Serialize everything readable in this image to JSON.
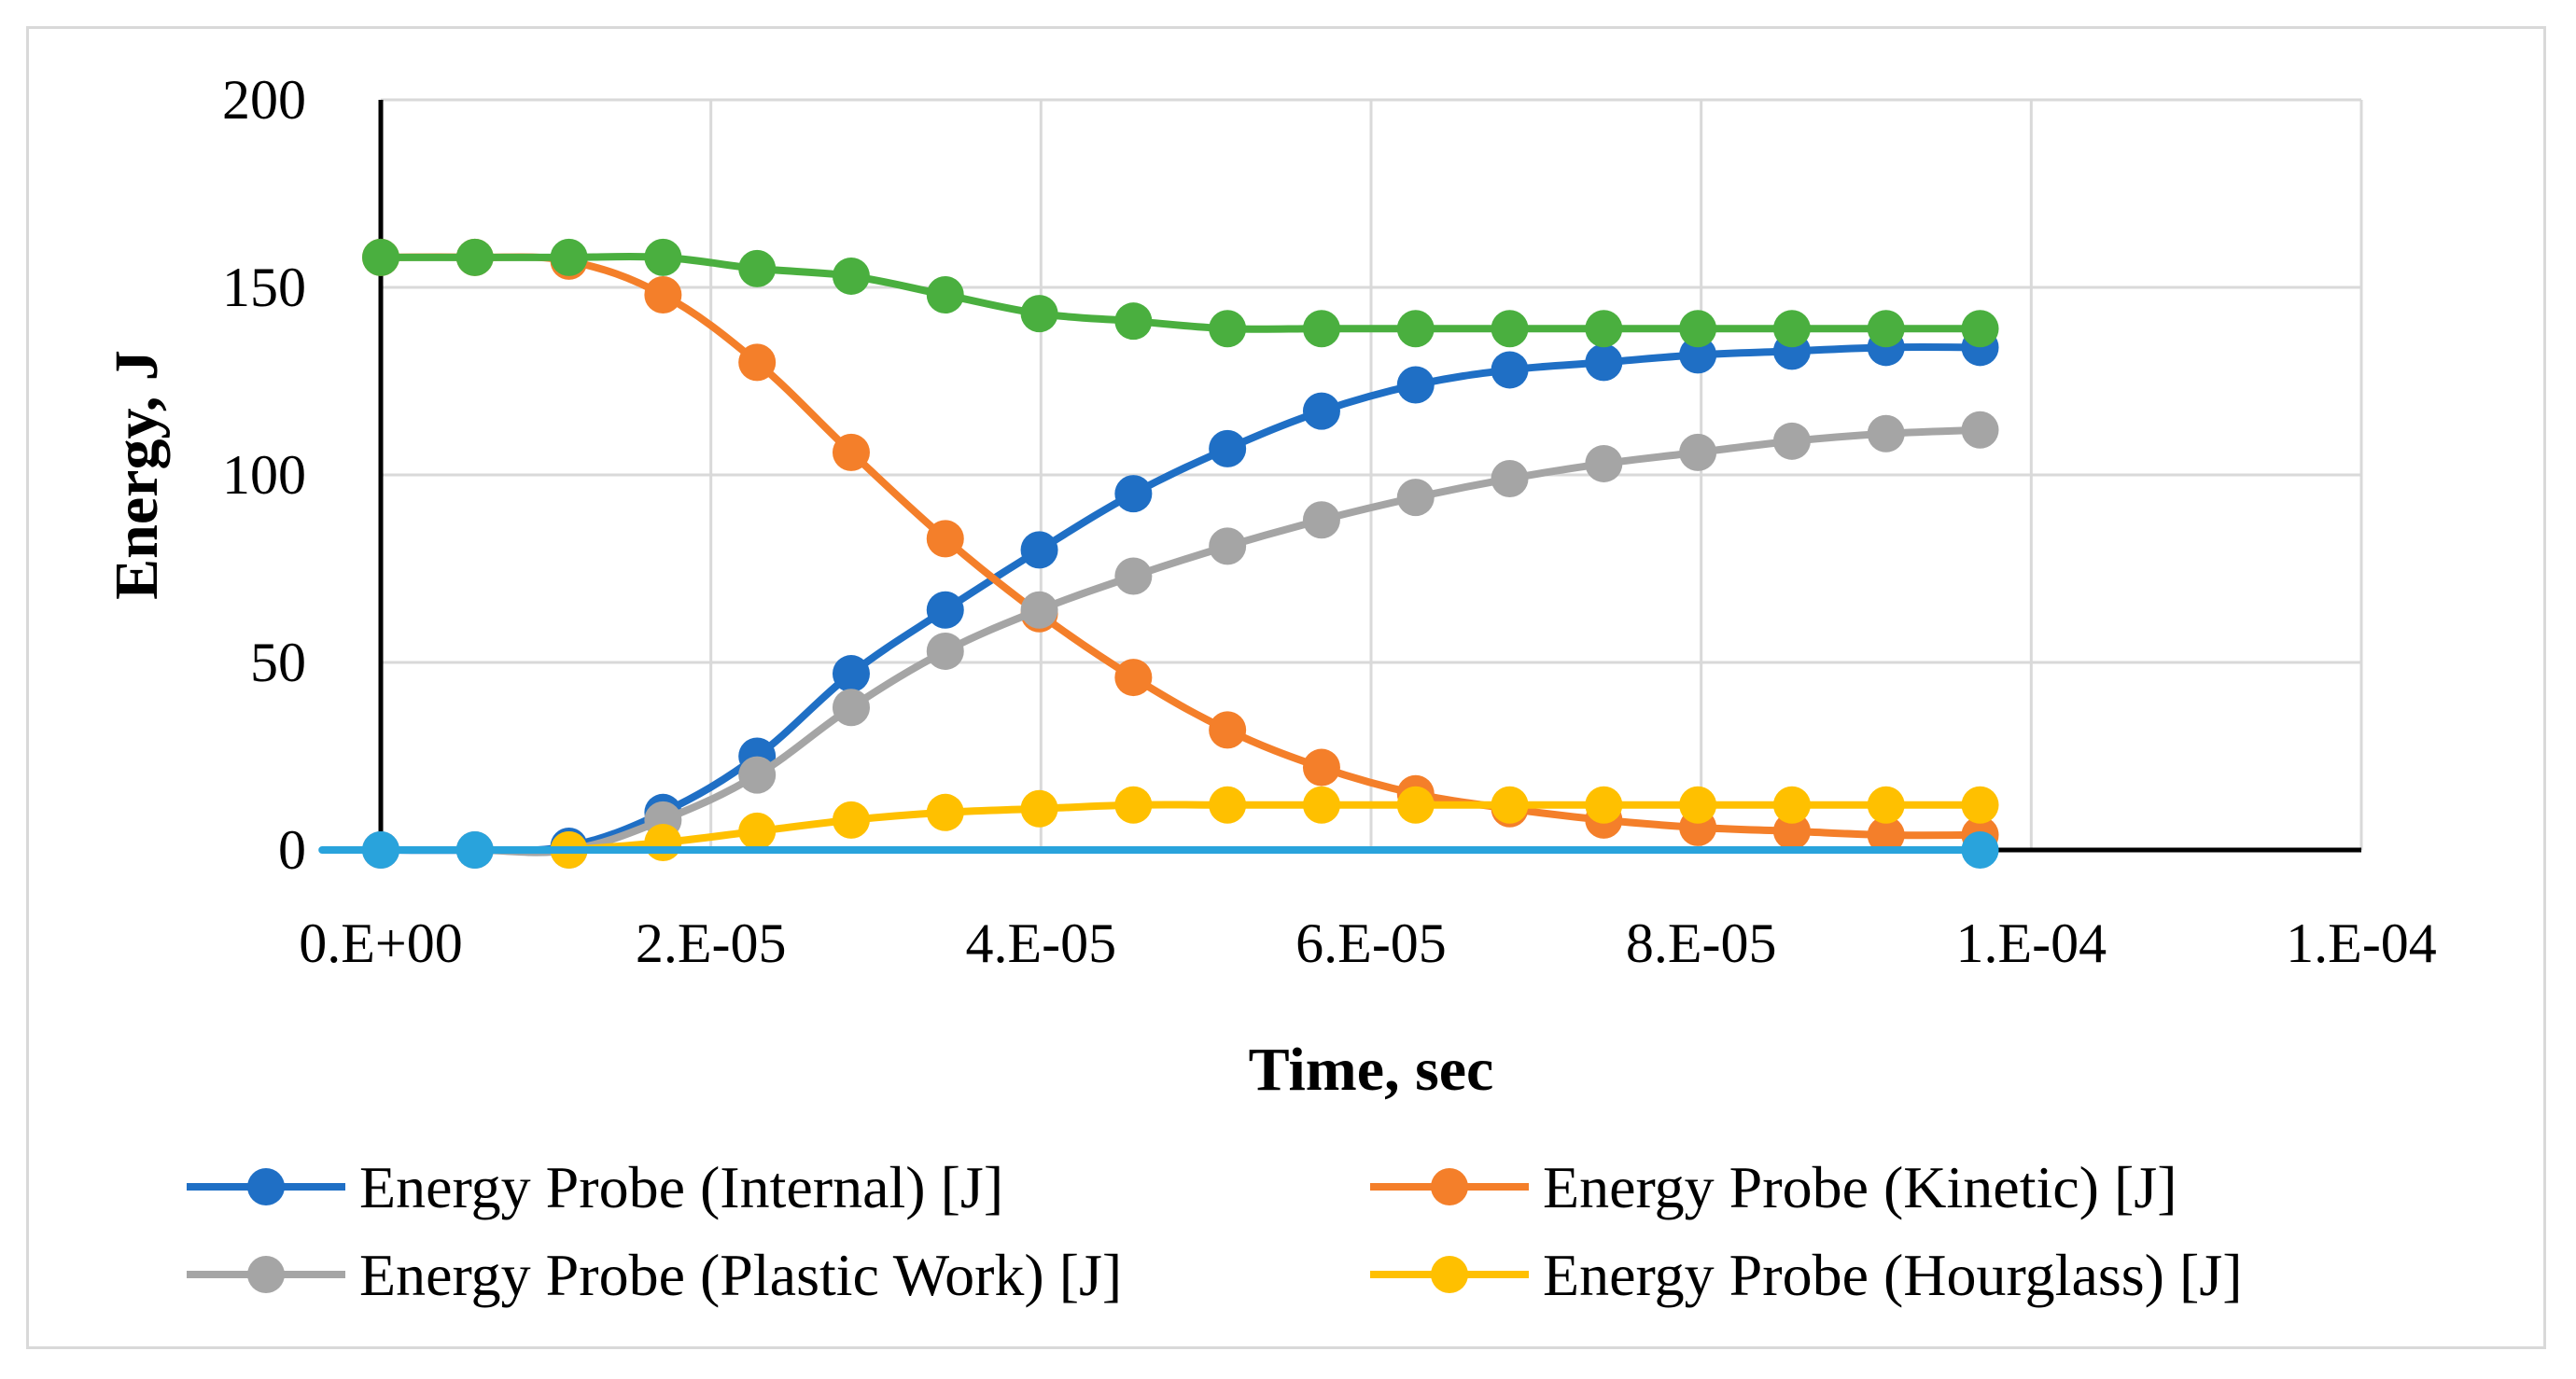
{
  "chart_data": {
    "type": "line",
    "xlabel": "Time, sec",
    "ylabel": "Energy, J",
    "xlim": [
      0,
      0.00012
    ],
    "ylim": [
      0,
      200
    ],
    "x_tick_values": [
      0,
      2e-05,
      4e-05,
      6e-05,
      8e-05,
      0.0001,
      0.00012
    ],
    "x_tick_labels": [
      "0.E+00",
      "2.E-05",
      "4.E-05",
      "6.E-05",
      "8.E-05",
      "1.E-04",
      "1.E-04"
    ],
    "y_tick_values": [
      0,
      50,
      100,
      150,
      200
    ],
    "y_tick_labels": [
      "0",
      "50",
      "100",
      "150",
      "200"
    ],
    "grid": true,
    "legend_position": "bottom",
    "x": [
      0,
      5.7e-06,
      1.14e-05,
      1.71e-05,
      2.28e-05,
      2.85e-05,
      3.42e-05,
      3.99e-05,
      4.56e-05,
      5.13e-05,
      5.7e-05,
      6.27e-05,
      6.84e-05,
      7.41e-05,
      7.98e-05,
      8.55e-05,
      9.12e-05,
      9.69e-05
    ],
    "series": [
      {
        "name": "Energy Probe (Internal) [J]",
        "color": "#1f6fc5",
        "legend": true,
        "values": [
          0,
          0,
          1,
          10,
          25,
          47,
          64,
          80,
          95,
          107,
          117,
          124,
          128,
          130,
          132,
          133,
          134,
          134
        ]
      },
      {
        "name": "Energy Probe (Kinetic) [J]",
        "color": "#f47f2a",
        "legend": true,
        "values": [
          158,
          158,
          157,
          148,
          130,
          106,
          83,
          63,
          46,
          32,
          22,
          15,
          11,
          8,
          6,
          5,
          4,
          4
        ]
      },
      {
        "name": "Energy Probe (Plastic Work) [J]",
        "color": "#a5a5a5",
        "legend": true,
        "values": [
          0,
          0,
          0,
          8,
          20,
          38,
          53,
          64,
          73,
          81,
          88,
          94,
          99,
          103,
          106,
          109,
          111,
          112
        ]
      },
      {
        "name": "Energy Probe (Hourglass) [J]",
        "color": "#ffc000",
        "legend": true,
        "values": [
          null,
          null,
          0,
          2,
          5,
          8,
          10,
          11,
          12,
          12,
          12,
          12,
          12,
          12,
          12,
          12,
          12,
          12
        ]
      },
      {
        "name": "",
        "color": "#4aaf3f",
        "legend": false,
        "values": [
          158,
          158,
          158,
          158,
          155,
          153,
          148,
          143,
          141,
          139,
          139,
          139,
          139,
          139,
          139,
          139,
          139,
          139
        ]
      },
      {
        "name": "",
        "color": "#29a3dc",
        "legend": false,
        "values": [
          0,
          0,
          null,
          null,
          null,
          null,
          null,
          null,
          null,
          null,
          null,
          null,
          null,
          null,
          null,
          null,
          null,
          0
        ]
      }
    ]
  }
}
